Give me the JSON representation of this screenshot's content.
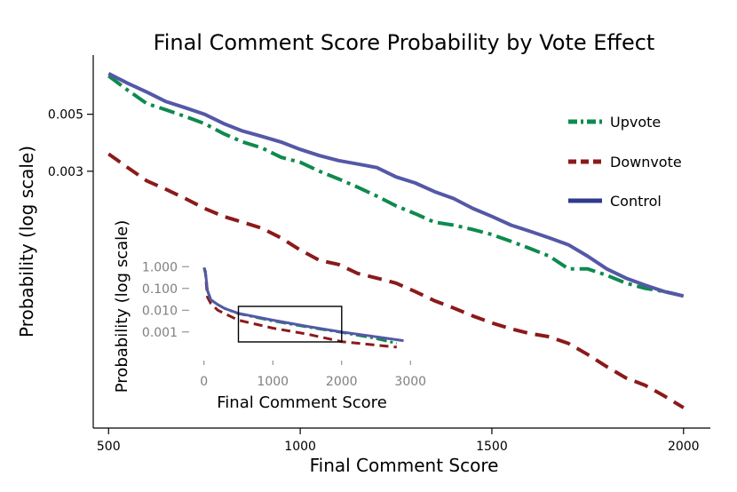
{
  "colors": {
    "upvote": "#0f8a4f",
    "downvote": "#8b1a1a",
    "control": "#5458a6",
    "legend_control": "#2e3a8c",
    "axis": "#000000",
    "inset_tick": "#7f7f7f"
  },
  "chart_data": {
    "type": "line",
    "title": "Final Comment Score Probability by Vote Effect",
    "xlabel": "Final Comment Score",
    "ylabel": "Probability (log scale)",
    "xlim": [
      460,
      2070
    ],
    "ylim": [
      0.0003,
      0.0085
    ],
    "yscale": "log",
    "xticks": [
      500,
      1000,
      1500,
      2000
    ],
    "xtick_labels": [
      "500",
      "1000",
      "1500",
      "2000"
    ],
    "yticks": [
      0.003,
      0.005
    ],
    "ytick_labels": [
      "0.003",
      "0.005"
    ],
    "legend": {
      "position": "right",
      "entries": [
        "Upvote",
        "Downvote",
        "Control"
      ]
    },
    "series": [
      {
        "name": "Upvote",
        "style": "dash-dot",
        "x": [
          500,
          550,
          600,
          650,
          700,
          750,
          800,
          850,
          900,
          950,
          1000,
          1050,
          1100,
          1150,
          1200,
          1250,
          1300,
          1350,
          1400,
          1450,
          1500,
          1550,
          1600,
          1650,
          1700,
          1750,
          1800,
          1850,
          1900,
          1950,
          2000
        ],
        "y": [
          0.00705,
          0.0062,
          0.0055,
          0.0052,
          0.0049,
          0.0046,
          0.0042,
          0.0039,
          0.0037,
          0.0034,
          0.00325,
          0.003,
          0.0028,
          0.0026,
          0.0024,
          0.0022,
          0.00205,
          0.0019,
          0.00185,
          0.00178,
          0.0017,
          0.0016,
          0.0015,
          0.0014,
          0.00125,
          0.00125,
          0.00118,
          0.0011,
          0.00105,
          0.00102,
          0.00098
        ]
      },
      {
        "name": "Downvote",
        "style": "dashed",
        "x": [
          500,
          550,
          600,
          650,
          700,
          750,
          800,
          850,
          900,
          950,
          1000,
          1050,
          1100,
          1150,
          1200,
          1250,
          1300,
          1350,
          1400,
          1450,
          1500,
          1550,
          1600,
          1650,
          1700,
          1750,
          1800,
          1850,
          1900,
          1950,
          2000
        ],
        "y": [
          0.0035,
          0.0031,
          0.00275,
          0.00255,
          0.00235,
          0.00215,
          0.002,
          0.0019,
          0.0018,
          0.00165,
          0.00148,
          0.00135,
          0.0013,
          0.0012,
          0.00115,
          0.0011,
          0.00102,
          0.00094,
          0.00088,
          0.00082,
          0.00077,
          0.00073,
          0.0007,
          0.00068,
          0.00064,
          0.00058,
          0.00052,
          0.00047,
          0.00044,
          0.0004,
          0.00036
        ]
      },
      {
        "name": "Control",
        "style": "solid",
        "x": [
          500,
          550,
          600,
          650,
          700,
          750,
          800,
          850,
          900,
          950,
          1000,
          1050,
          1100,
          1150,
          1200,
          1250,
          1300,
          1350,
          1400,
          1450,
          1500,
          1550,
          1600,
          1650,
          1700,
          1750,
          1800,
          1850,
          1900,
          1950,
          2000
        ],
        "y": [
          0.0072,
          0.0066,
          0.0061,
          0.0056,
          0.0053,
          0.005,
          0.0046,
          0.0043,
          0.0041,
          0.0039,
          0.00365,
          0.00345,
          0.0033,
          0.0032,
          0.0031,
          0.00285,
          0.0027,
          0.0025,
          0.00235,
          0.00215,
          0.002,
          0.00185,
          0.00175,
          0.00165,
          0.00155,
          0.0014,
          0.00125,
          0.00115,
          0.00108,
          0.00102,
          0.00098
        ]
      }
    ],
    "inset": {
      "xlabel": "Final Comment Score",
      "ylabel": "Probability (log scale)",
      "xlim": [
        -100,
        3100
      ],
      "ylim": [
        0.00015,
        1.8
      ],
      "yscale": "log",
      "xticks": [
        0,
        1000,
        2000,
        3000
      ],
      "xtick_labels": [
        "0",
        "1000",
        "2000",
        "3000"
      ],
      "yticks": [
        0.001,
        0.01,
        0.1,
        1
      ],
      "ytick_labels": [
        "0.001",
        "0.010",
        "0.100",
        "1.000"
      ],
      "zoom_box": {
        "x": [
          500,
          2000
        ],
        "y": [
          0.00035,
          0.015
        ]
      },
      "series": [
        {
          "name": "Upvote",
          "style": "dash-dot",
          "x": [
            0,
            20,
            50,
            100,
            200,
            300,
            500,
            1000,
            1500,
            2000,
            2500,
            2800
          ],
          "y": [
            0.9,
            0.6,
            0.08,
            0.03,
            0.018,
            0.012,
            0.007,
            0.0032,
            0.0017,
            0.00095,
            0.0005,
            0.0003
          ]
        },
        {
          "name": "Downvote",
          "style": "dashed",
          "x": [
            0,
            20,
            50,
            100,
            200,
            300,
            500,
            1000,
            1500,
            2000,
            2500,
            2800
          ],
          "y": [
            0.9,
            0.5,
            0.04,
            0.02,
            0.01,
            0.007,
            0.0035,
            0.0015,
            0.0008,
            0.00036,
            0.00025,
            0.0002
          ]
        },
        {
          "name": "Control",
          "style": "solid",
          "x": [
            0,
            20,
            50,
            100,
            200,
            300,
            500,
            1000,
            1500,
            2000,
            2500,
            2900
          ],
          "y": [
            0.9,
            0.6,
            0.08,
            0.03,
            0.018,
            0.012,
            0.0072,
            0.0035,
            0.0018,
            0.001,
            0.0006,
            0.0004
          ]
        }
      ]
    }
  }
}
